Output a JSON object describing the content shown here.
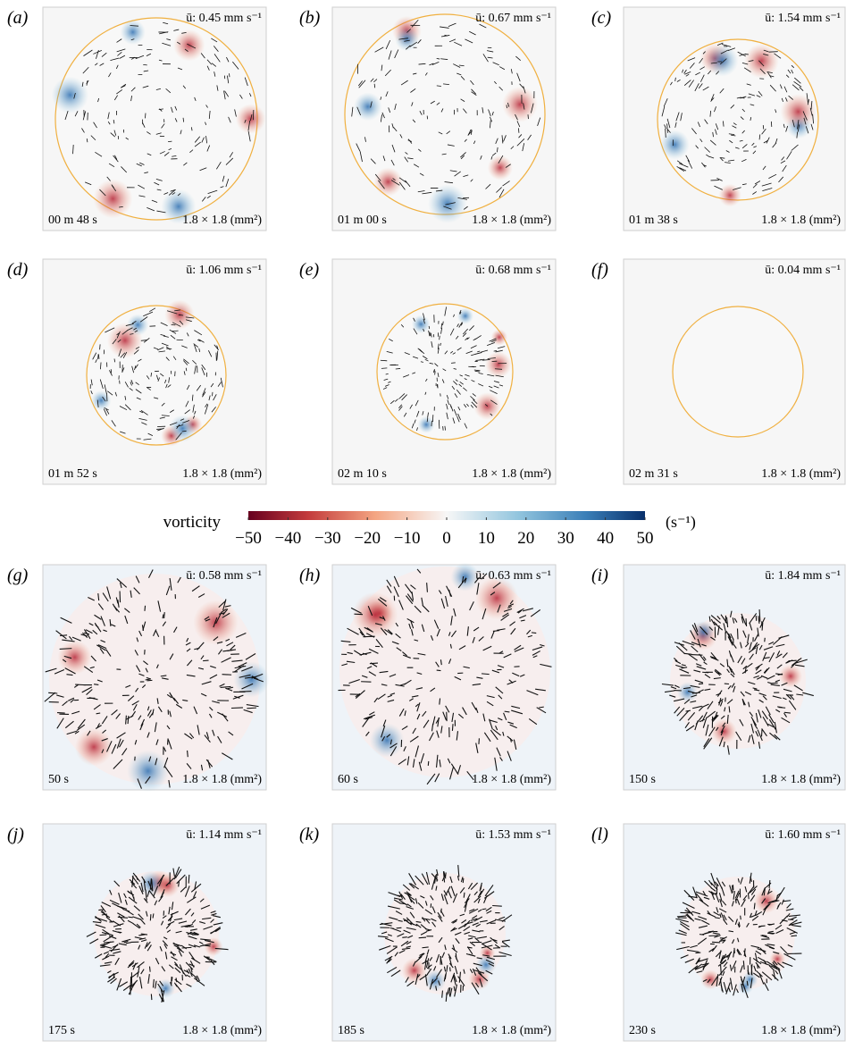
{
  "panels": [
    {
      "label": "(a)",
      "speed": "ū: 0.45 mm s⁻¹",
      "time": "00 m 48 s",
      "size": "1.8 × 1.8 (mm²)"
    },
    {
      "label": "(b)",
      "speed": "ū: 0.67 mm s⁻¹",
      "time": "01 m 00 s",
      "size": "1.8 × 1.8 (mm²)"
    },
    {
      "label": "(c)",
      "speed": "ū: 1.54 mm s⁻¹",
      "time": "01 m 38 s",
      "size": "1.8 × 1.8 (mm²)"
    },
    {
      "label": "(d)",
      "speed": "ū: 1.06 mm s⁻¹",
      "time": "01 m 52 s",
      "size": "1.8 × 1.8 (mm²)"
    },
    {
      "label": "(e)",
      "speed": "ū: 0.68 mm s⁻¹",
      "time": "02 m 10 s",
      "size": "1.8 × 1.8 (mm²)"
    },
    {
      "label": "(f)",
      "speed": "ū: 0.04 mm s⁻¹",
      "time": "02 m 31 s",
      "size": "1.8 × 1.8 (mm²)"
    },
    {
      "label": "(g)",
      "speed": "ū: 0.58 mm s⁻¹",
      "time": "50 s",
      "size": "1.8 × 1.8 (mm²)"
    },
    {
      "label": "(h)",
      "speed": "ū: 0.63 mm s⁻¹",
      "time": "60 s",
      "size": "1.8 × 1.8 (mm²)"
    },
    {
      "label": "(i)",
      "speed": "ū: 1.84 mm s⁻¹",
      "time": "150 s",
      "size": "1.8 × 1.8 (mm²)"
    },
    {
      "label": "(j)",
      "speed": "ū: 1.14 mm s⁻¹",
      "time": "175 s",
      "size": "1.8 × 1.8 (mm²)"
    },
    {
      "label": "(k)",
      "speed": "ū: 1.53 mm s⁻¹",
      "time": "185 s",
      "size": "1.8 × 1.8 (mm²)"
    },
    {
      "label": "(l)",
      "speed": "ū: 1.60 mm s⁻¹",
      "time": "230 s",
      "size": "1.8 × 1.8 (mm²)"
    }
  ],
  "colorbar": {
    "label": "vorticity",
    "unit": "(s⁻¹)",
    "range": [
      -50,
      50
    ],
    "ticks": [
      {
        "value": -50,
        "label": "−50"
      },
      {
        "value": -40,
        "label": "−40"
      },
      {
        "value": -30,
        "label": "−30"
      },
      {
        "value": -20,
        "label": "−20"
      },
      {
        "value": -10,
        "label": "−10"
      },
      0,
      10,
      20,
      30,
      40,
      50
    ]
  }
}
